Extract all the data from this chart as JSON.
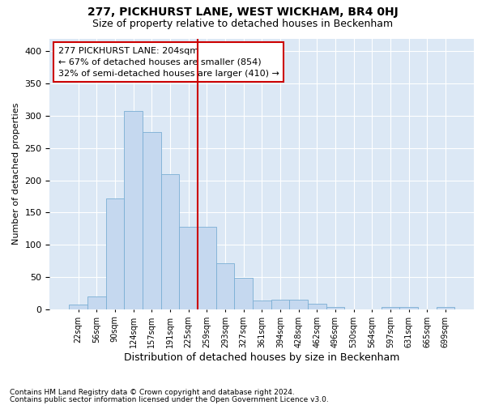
{
  "title1": "277, PICKHURST LANE, WEST WICKHAM, BR4 0HJ",
  "title2": "Size of property relative to detached houses in Beckenham",
  "xlabel": "Distribution of detached houses by size in Beckenham",
  "ylabel": "Number of detached properties",
  "bar_color": "#c5d8ef",
  "bar_edge_color": "#7aaed4",
  "background_color": "#dce8f5",
  "grid_color": "#ffffff",
  "vline_color": "#cc0000",
  "vline_x_idx": 6,
  "annotation_line1": "277 PICKHURST LANE: 204sqm",
  "annotation_line2": "← 67% of detached houses are smaller (854)",
  "annotation_line3": "32% of semi-detached houses are larger (410) →",
  "annotation_box_color": "#ffffff",
  "annotation_box_edge": "#cc0000",
  "bin_labels": [
    "22sqm",
    "56sqm",
    "90sqm",
    "124sqm",
    "157sqm",
    "191sqm",
    "225sqm",
    "259sqm",
    "293sqm",
    "327sqm",
    "361sqm",
    "394sqm",
    "428sqm",
    "462sqm",
    "496sqm",
    "530sqm",
    "564sqm",
    "597sqm",
    "631sqm",
    "665sqm",
    "699sqm"
  ],
  "bar_heights": [
    7,
    20,
    172,
    308,
    275,
    210,
    128,
    128,
    71,
    49,
    14,
    15,
    15,
    9,
    4,
    0,
    0,
    4,
    4,
    0,
    4
  ],
  "ylim": [
    0,
    420
  ],
  "yticks": [
    0,
    50,
    100,
    150,
    200,
    250,
    300,
    350,
    400
  ],
  "footnote1": "Contains HM Land Registry data © Crown copyright and database right 2024.",
  "footnote2": "Contains public sector information licensed under the Open Government Licence v3.0."
}
